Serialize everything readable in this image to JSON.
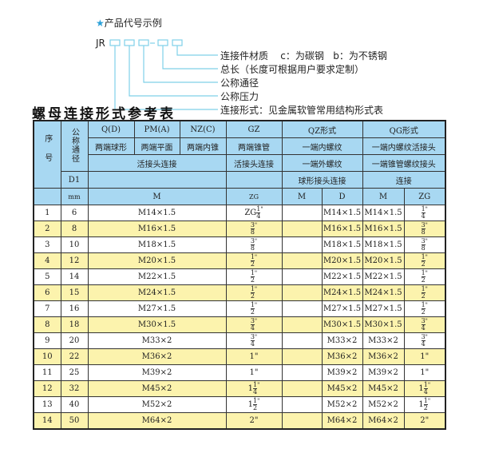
{
  "example": {
    "title": "产品代号示例",
    "star_icon": "star-icon",
    "code_prefix": "JR",
    "legend": [
      "连接件材质    c：为碳钢   b：为不锈钢",
      "总长（长度可根据用户要求定制）",
      "公称通径",
      "公称压力",
      "连接形式：见金属软管常用结构形式表"
    ],
    "line_color": "#7fd0e8"
  },
  "table_title": "螺母连接形式参考表",
  "colors": {
    "header_bg": "#a8d8f2",
    "row_alt_bg": "#fcf3ad"
  },
  "header": {
    "seq": "序号",
    "nominal": "公称通径",
    "q": "Q(D)",
    "pm": "PM(A)",
    "nz": "NZ(C)",
    "gz": "GZ",
    "qz": "QZ形式",
    "qg": "QG形式",
    "q_desc": "两端球形",
    "pm_desc": "两端平面",
    "nz_desc": "两端内锥",
    "gz_desc": "两端锥管",
    "qz_desc1": "一端内螺纹",
    "qg_desc1": "一端内螺纹活接头",
    "union": "活接头连接",
    "gz_union": "活接头连接",
    "qz_desc2": "一端外螺纹",
    "qg_desc2": "一端锥管螺纹接头",
    "d1": "D1",
    "qz_desc3": "球形接头连接",
    "qg_desc3": "连接",
    "mm": "mm",
    "m": "M",
    "zg": "ZG",
    "qz_m": "M",
    "qz_d": "D",
    "qg_m": "M",
    "qg_zg": "ZG"
  },
  "rows": [
    {
      "no": "1",
      "dn": "6",
      "m": "M14×1.5",
      "zg": {
        "pre": "ZG",
        "n": "1",
        "d": "4",
        "s": "\""
      },
      "qz_m": "",
      "qz_d": "M14×1.5",
      "qg_m": "M14×1.5",
      "qg_zg": {
        "pre": "",
        "n": "1",
        "d": "4",
        "s": "\""
      }
    },
    {
      "no": "2",
      "dn": "8",
      "m": "M16×1.5",
      "zg": {
        "pre": "",
        "n": "3",
        "d": "8",
        "s": "\""
      },
      "qz_m": "",
      "qz_d": "M16×1.5",
      "qg_m": "M16×1.5",
      "qg_zg": {
        "pre": "",
        "n": "3",
        "d": "8",
        "s": "\""
      }
    },
    {
      "no": "3",
      "dn": "10",
      "m": "M18×1.5",
      "zg": {
        "pre": "",
        "n": "3",
        "d": "8",
        "s": "\""
      },
      "qz_m": "",
      "qz_d": "M18×1.5",
      "qg_m": "M18×1.5",
      "qg_zg": {
        "pre": "",
        "n": "3",
        "d": "8",
        "s": "\""
      }
    },
    {
      "no": "4",
      "dn": "12",
      "m": "M20×1.5",
      "zg": {
        "pre": "",
        "n": "1",
        "d": "2",
        "s": "\""
      },
      "qz_m": "",
      "qz_d": "M20×1.5",
      "qg_m": "M20×1.5",
      "qg_zg": {
        "pre": "",
        "n": "1",
        "d": "2",
        "s": "\""
      }
    },
    {
      "no": "5",
      "dn": "14",
      "m": "M22×1.5",
      "zg": {
        "pre": "",
        "n": "1",
        "d": "2",
        "s": "\""
      },
      "qz_m": "",
      "qz_d": "M22×1.5",
      "qg_m": "M22×1.5",
      "qg_zg": {
        "pre": "",
        "n": "1",
        "d": "2",
        "s": "\""
      }
    },
    {
      "no": "6",
      "dn": "15",
      "m": "M24×1.5",
      "zg": {
        "pre": "",
        "n": "1",
        "d": "2",
        "s": "\""
      },
      "qz_m": "",
      "qz_d": "M24×1.5",
      "qg_m": "M24×1.5",
      "qg_zg": {
        "pre": "",
        "n": "1",
        "d": "2",
        "s": "\""
      }
    },
    {
      "no": "7",
      "dn": "16",
      "m": "M27×1.5",
      "zg": {
        "pre": "",
        "n": "1",
        "d": "2",
        "s": "\""
      },
      "qz_m": "",
      "qz_d": "M27×1.5",
      "qg_m": "M27×1.5",
      "qg_zg": {
        "pre": "",
        "n": "1",
        "d": "2",
        "s": "\""
      }
    },
    {
      "no": "8",
      "dn": "18",
      "m": "M30×1.5",
      "zg": {
        "pre": "",
        "n": "3",
        "d": "4",
        "s": "\""
      },
      "qz_m": "",
      "qz_d": "M30×1.5",
      "qg_m": "M30×1.5",
      "qg_zg": {
        "pre": "",
        "n": "3",
        "d": "4",
        "s": "\""
      }
    },
    {
      "no": "9",
      "dn": "20",
      "m": "M33×2",
      "zg": {
        "pre": "",
        "n": "3",
        "d": "4",
        "s": "\""
      },
      "qz_m": "",
      "qz_d": "M33×2",
      "qg_m": "M33×2",
      "qg_zg": {
        "pre": "",
        "n": "3",
        "d": "4",
        "s": "\""
      }
    },
    {
      "no": "10",
      "dn": "22",
      "m": "M36×2",
      "zg": {
        "pre": "1\"",
        "n": "",
        "d": "",
        "s": ""
      },
      "qz_m": "",
      "qz_d": "M36×2",
      "qg_m": "M36×2",
      "qg_zg": {
        "pre": "1\"",
        "n": "",
        "d": "",
        "s": ""
      }
    },
    {
      "no": "11",
      "dn": "25",
      "m": "M39×2",
      "zg": {
        "pre": "1\"",
        "n": "",
        "d": "",
        "s": ""
      },
      "qz_m": "",
      "qz_d": "M39×2",
      "qg_m": "M39×2",
      "qg_zg": {
        "pre": "1\"",
        "n": "",
        "d": "",
        "s": ""
      }
    },
    {
      "no": "12",
      "dn": "32",
      "m": "M45×2",
      "zg": {
        "pre": "1",
        "n": "1",
        "d": "4",
        "s": "\""
      },
      "qz_m": "",
      "qz_d": "M45×2",
      "qg_m": "M45×2",
      "qg_zg": {
        "pre": "1",
        "n": "1",
        "d": "4",
        "s": "\""
      }
    },
    {
      "no": "13",
      "dn": "40",
      "m": "M52×2",
      "zg": {
        "pre": "1",
        "n": "1",
        "d": "2",
        "s": "\""
      },
      "qz_m": "",
      "qz_d": "M52×2",
      "qg_m": "M52×2",
      "qg_zg": {
        "pre": "1",
        "n": "1",
        "d": "2",
        "s": "\""
      }
    },
    {
      "no": "14",
      "dn": "50",
      "m": "M64×2",
      "zg": {
        "pre": "2\"",
        "n": "",
        "d": "",
        "s": ""
      },
      "qz_m": "",
      "qz_d": "M64×2",
      "qg_m": "M64×2",
      "qg_zg": {
        "pre": "2\"",
        "n": "",
        "d": "",
        "s": ""
      }
    }
  ]
}
